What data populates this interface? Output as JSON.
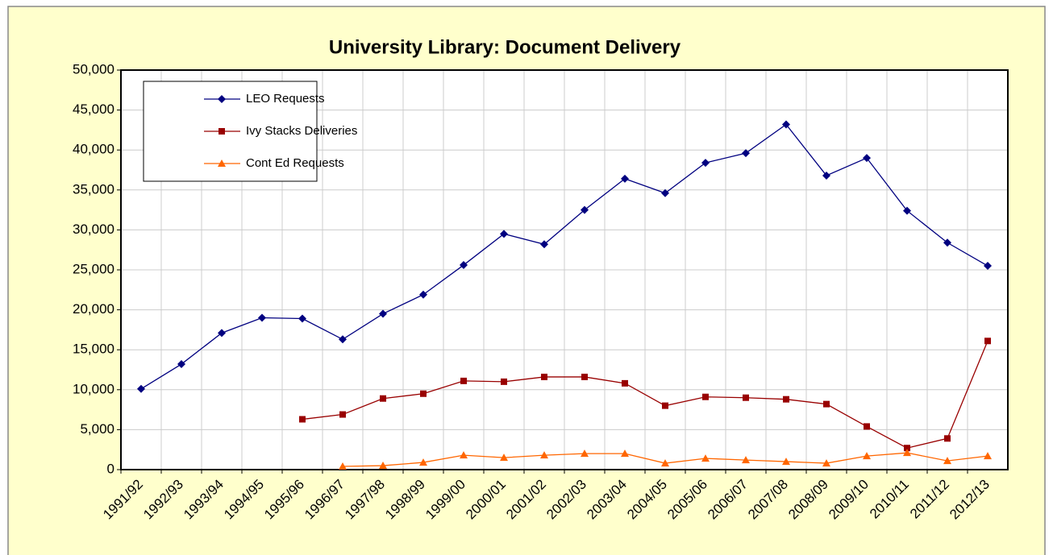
{
  "chart_data": {
    "type": "line",
    "title": "University Library:  Document Delivery",
    "categories": [
      "1991/92",
      "1992/93",
      "1993/94",
      "1994/95",
      "1995/96",
      "1996/97",
      "1997/98",
      "1998/99",
      "1999/00",
      "2000/01",
      "2001/02",
      "2002/03",
      "2003/04",
      "2004/05",
      "2005/06",
      "2006/07",
      "2007/08",
      "2008/09",
      "2009/10",
      "2010/11",
      "2011/12",
      "2012/13"
    ],
    "series": [
      {
        "name": "LEO Requests",
        "color": "#000080",
        "marker": "diamond",
        "values": [
          10100,
          13200,
          17100,
          19000,
          18900,
          16300,
          19500,
          21900,
          25600,
          29500,
          28200,
          32500,
          36400,
          34600,
          38400,
          39600,
          43200,
          36800,
          39000,
          32400,
          28400,
          25500
        ]
      },
      {
        "name": "Ivy Stacks Deliveries",
        "color": "#990000",
        "marker": "square",
        "values": [
          null,
          null,
          null,
          null,
          6300,
          6900,
          8900,
          9500,
          11100,
          11000,
          11600,
          11600,
          10800,
          8000,
          9100,
          9000,
          8800,
          8200,
          5400,
          2700,
          3900,
          16100
        ]
      },
      {
        "name": "Cont Ed Requests",
        "color": "#FF6600",
        "marker": "triangle",
        "values": [
          null,
          null,
          null,
          null,
          null,
          400,
          500,
          900,
          1800,
          1500,
          1800,
          2000,
          2000,
          800,
          1400,
          1200,
          1000,
          800,
          1700,
          2100,
          1100,
          1700
        ]
      }
    ],
    "ylim": [
      0,
      50000
    ],
    "yticks": [
      0,
      {
        "value": 5000,
        "label": "5,000"
      },
      {
        "value": 10000,
        "label": "10,000"
      },
      {
        "value": 15000,
        "label": "15,000"
      },
      {
        "value": 20000,
        "label": "20,000"
      },
      {
        "value": 25000,
        "label": "25,000"
      },
      {
        "value": 30000,
        "label": "30,000"
      },
      {
        "value": 35000,
        "label": "35,000"
      },
      {
        "value": 40000,
        "label": "40,000"
      },
      {
        "value": 45000,
        "label": "45,000"
      },
      {
        "value": 50000,
        "label": "50,000"
      }
    ],
    "grid": true,
    "legend": "upper left"
  }
}
